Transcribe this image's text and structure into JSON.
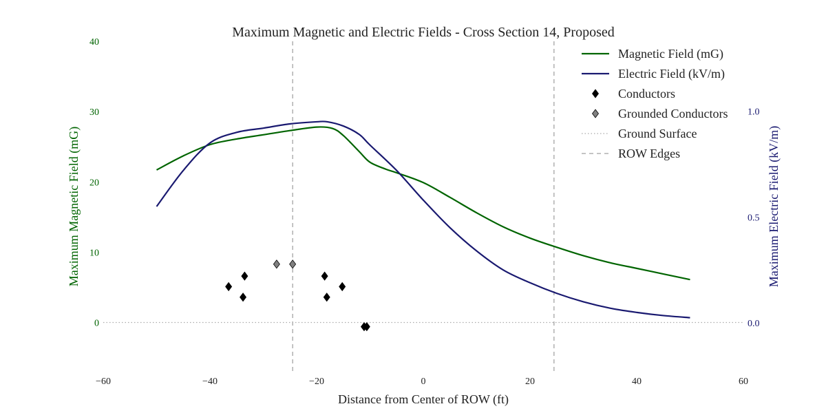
{
  "chart_data": {
    "type": "line",
    "title": "Maximum Magnetic and Electric Fields - Cross Section 14, Proposed",
    "xlabel": "Distance from Center of ROW (ft)",
    "ylabel_left": "Maximum Magnetic Field (mG)",
    "ylabel_right": "Maximum Electric Field (kV/m)",
    "xlim": [
      -60,
      60
    ],
    "ylim_left": [
      -7,
      40
    ],
    "ylim_right": [
      -0.23,
      1.33
    ],
    "x_ticks": [
      "−60",
      "−40",
      "−20",
      "0",
      "20",
      "40",
      "60"
    ],
    "y_left_ticks": [
      "0",
      "10",
      "20",
      "30",
      "40"
    ],
    "y_right_ticks": [
      "0.0",
      "0.5",
      "1.0"
    ],
    "grid": false,
    "legend_position": "top-right",
    "colors": {
      "magnetic": "#006400",
      "electric": "#191970",
      "conductor": "#000000",
      "grounded": "#808080",
      "ground_surface": "#aaaaaa",
      "row_edge": "#888888"
    },
    "series": [
      {
        "name": "Magnetic Field (mG)",
        "axis": "left",
        "x": [
          -50,
          -45,
          -40,
          -35,
          -30,
          -25,
          -20,
          -17,
          -15,
          -12,
          -10,
          -7,
          -5,
          0,
          5,
          10,
          15,
          20,
          25,
          30,
          35,
          40,
          45,
          50
        ],
        "values": [
          21.7,
          23.7,
          25.3,
          26.1,
          26.7,
          27.3,
          27.8,
          27.6,
          26.6,
          24.3,
          22.8,
          21.8,
          21.3,
          19.9,
          17.8,
          15.6,
          13.6,
          12.0,
          10.7,
          9.5,
          8.5,
          7.7,
          6.9,
          6.1
        ]
      },
      {
        "name": "Electric Field (kV/m)",
        "axis": "right",
        "x": [
          -50,
          -45,
          -40,
          -35,
          -30,
          -25,
          -20,
          -18,
          -15,
          -12,
          -10,
          -5,
          0,
          5,
          10,
          15,
          20,
          25,
          30,
          35,
          40,
          45,
          50
        ],
        "values": [
          0.55,
          0.72,
          0.85,
          0.9,
          0.92,
          0.94,
          0.95,
          0.95,
          0.93,
          0.89,
          0.84,
          0.72,
          0.58,
          0.45,
          0.34,
          0.25,
          0.19,
          0.14,
          0.1,
          0.07,
          0.05,
          0.035,
          0.025
        ]
      }
    ],
    "conductors": {
      "name": "Conductors",
      "points": [
        [
          -36.5,
          5.1
        ],
        [
          -33.5,
          6.6
        ],
        [
          -33.8,
          3.6
        ],
        [
          -18.5,
          6.6
        ],
        [
          -18.1,
          3.6
        ],
        [
          -15.2,
          5.1
        ],
        [
          -11.1,
          -0.6
        ],
        [
          -10.6,
          -0.6
        ]
      ]
    },
    "grounded_conductors": {
      "name": "Grounded Conductors",
      "points": [
        [
          -27.5,
          8.3
        ],
        [
          -24.5,
          8.3
        ]
      ]
    },
    "ground_surface": {
      "name": "Ground Surface",
      "y": 0
    },
    "row_edges": {
      "name": "ROW Edges",
      "x": [
        -24.5,
        24.5
      ]
    },
    "legend": [
      {
        "label": "Magnetic Field (mG)",
        "kind": "line",
        "color_key": "magnetic"
      },
      {
        "label": "Electric Field (kV/m)",
        "kind": "line",
        "color_key": "electric"
      },
      {
        "label": "Conductors",
        "kind": "diamond",
        "color_key": "conductor"
      },
      {
        "label": "Grounded Conductors",
        "kind": "diamond",
        "color_key": "grounded"
      },
      {
        "label": "Ground Surface",
        "kind": "dotted",
        "color_key": "ground_surface"
      },
      {
        "label": "ROW Edges",
        "kind": "dashed",
        "color_key": "row_edge"
      }
    ]
  }
}
